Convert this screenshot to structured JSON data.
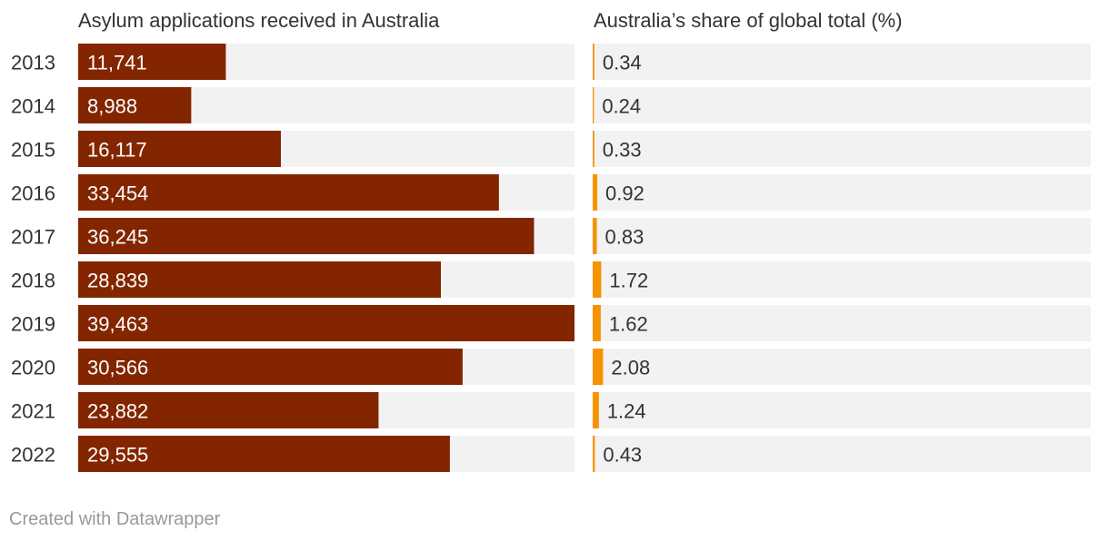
{
  "columns": {
    "left_title": "Asylum applications received in Australia",
    "right_title": "Australia’s share of global total (%)"
  },
  "footer": {
    "credit": "Created with Datawrapper"
  },
  "colors": {
    "applications_bar": "#832600",
    "share_bar": "#f59300",
    "bar_background": "#f2f2f2",
    "year_label": "#333333",
    "value_label_inside": "#ffffff",
    "value_label_outside": "#333333"
  },
  "chart_data": [
    {
      "type": "bar",
      "orientation": "horizontal",
      "title": "Asylum applications received in Australia",
      "categories": [
        "2013",
        "2014",
        "2015",
        "2016",
        "2017",
        "2018",
        "2019",
        "2020",
        "2021",
        "2022"
      ],
      "values": [
        11741,
        8988,
        16117,
        33454,
        36245,
        28839,
        39463,
        30566,
        23882,
        29555
      ],
      "value_labels": [
        "11,741",
        "8,988",
        "16,117",
        "33,454",
        "36,245",
        "28,839",
        "39,463",
        "30,566",
        "23,882",
        "29,555"
      ],
      "xlim": [
        0,
        39463
      ]
    },
    {
      "type": "bar",
      "orientation": "horizontal",
      "title": "Australia’s share of global total (%)",
      "categories": [
        "2013",
        "2014",
        "2015",
        "2016",
        "2017",
        "2018",
        "2019",
        "2020",
        "2021",
        "2022"
      ],
      "values": [
        0.34,
        0.24,
        0.33,
        0.92,
        0.83,
        1.72,
        1.62,
        2.08,
        1.24,
        0.43
      ],
      "value_labels": [
        "0.34",
        "0.24",
        "0.33",
        "0.92",
        "0.83",
        "1.72",
        "1.62",
        "2.08",
        "1.24",
        "0.43"
      ],
      "xlim": [
        0,
        100
      ]
    }
  ]
}
